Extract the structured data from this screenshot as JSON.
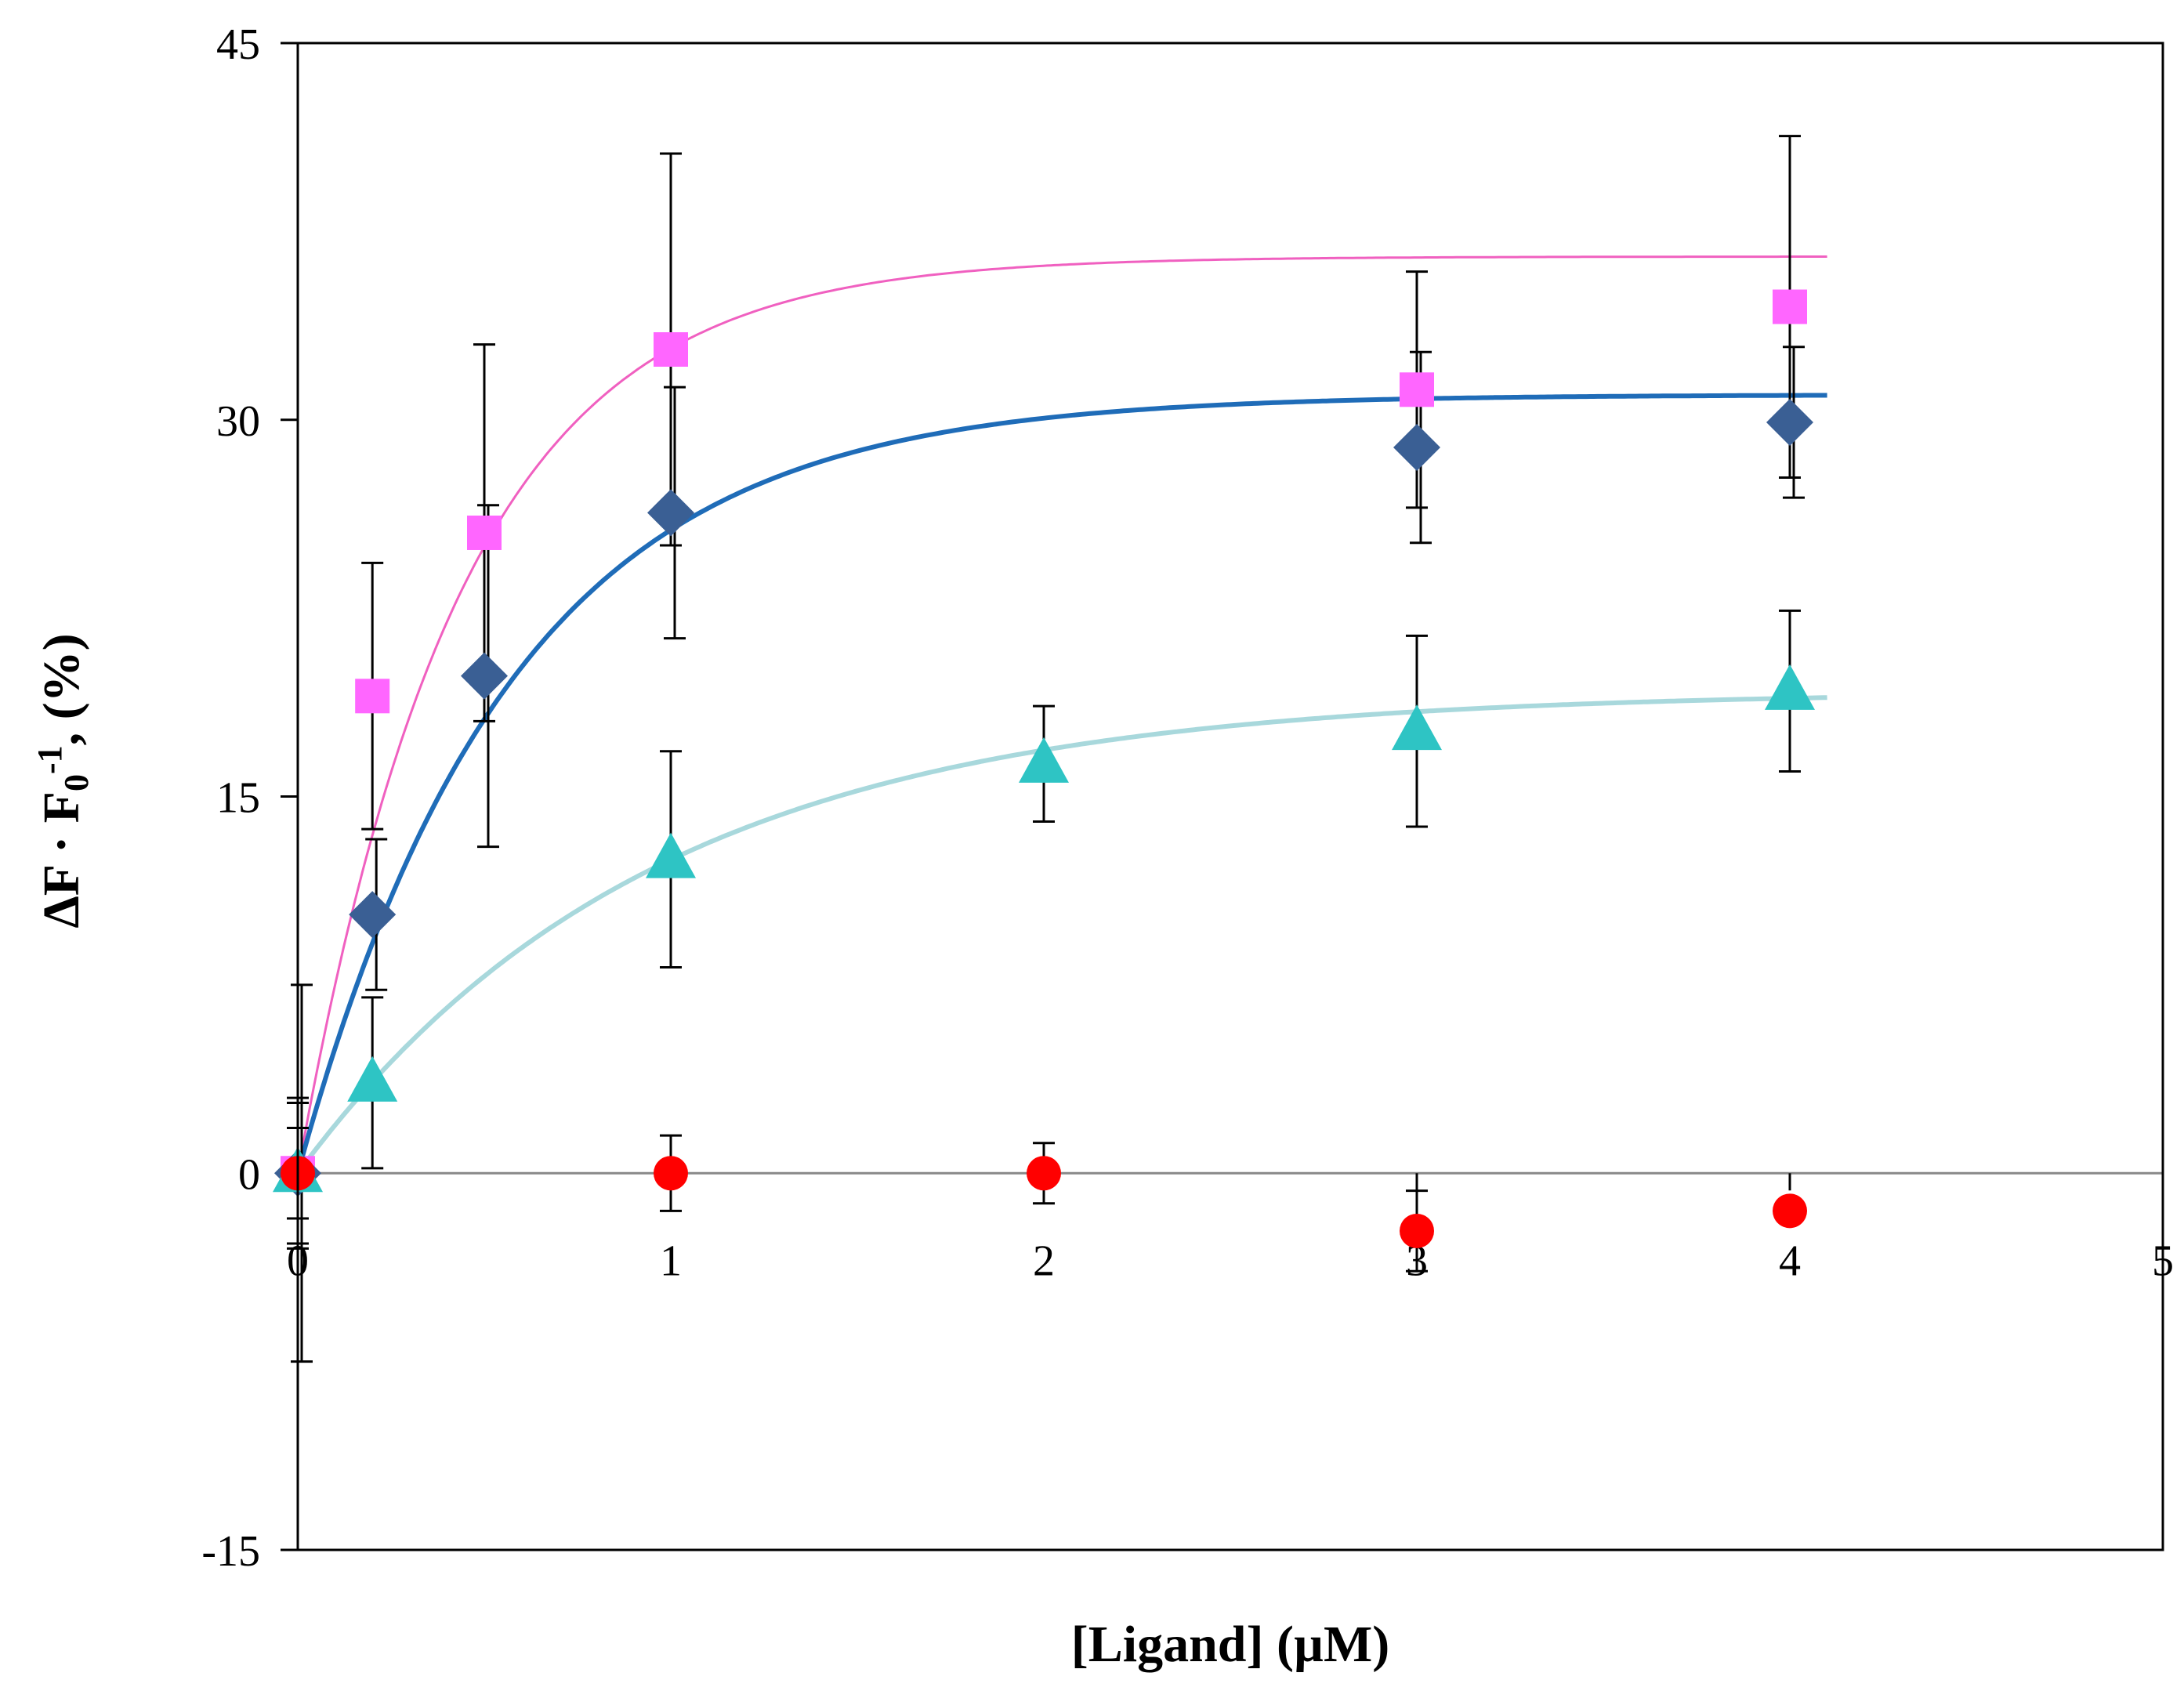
{
  "chart_data": {
    "type": "scatter",
    "title": "",
    "xlabel": "[Ligand] (µM)",
    "ylabel_main": "ΔF · F",
    "ylabel_sub": "0",
    "ylabel_sup": "-1",
    "ylabel_tail": ", (%)",
    "xlim": [
      0,
      5
    ],
    "ylim": [
      -15,
      45
    ],
    "xticks": [
      0,
      1,
      2,
      3,
      4,
      5
    ],
    "yticks": [
      -15,
      0,
      15,
      30,
      45
    ],
    "xtick_labels": [
      "0",
      "1",
      "2",
      "3",
      "4",
      "5"
    ],
    "ytick_labels": [
      "-15",
      "0",
      "15",
      "30",
      "45"
    ],
    "grid": false,
    "legend": "none",
    "series": [
      {
        "name": "magenta squares",
        "marker": "square",
        "color": "#ff66ff",
        "fit_color": "#f060c0",
        "fit": {
          "ymax": 36.5,
          "k": 2.3
        },
        "x": [
          0,
          0.2,
          0.5,
          1,
          3,
          4
        ],
        "y": [
          0,
          19,
          25.5,
          32.8,
          31.2,
          34.5
        ],
        "err": [
          3,
          5.3,
          7.5,
          7.8,
          4.7,
          6.8
        ]
      },
      {
        "name": "blue diamonds",
        "marker": "diamond",
        "color": "#3a5f94",
        "fit_color": "#1f6cb8",
        "fit": {
          "ymax": 31,
          "k": 1.75
        },
        "x": [
          0,
          0.2,
          0.5,
          1,
          3,
          4
        ],
        "y": [
          0,
          10.3,
          19.8,
          26.3,
          28.9,
          29.9
        ],
        "err": [
          7.5,
          3,
          6.8,
          5,
          3.8,
          3
        ]
      },
      {
        "name": "teal triangles",
        "marker": "triangle",
        "color": "#2ec4c4",
        "fit_color": "#a8d8dc",
        "fit": {
          "ymax": 19.2,
          "k": 1.05
        },
        "x": [
          0,
          0.2,
          1,
          2,
          3,
          4
        ],
        "y": [
          0,
          3.6,
          12.5,
          16.3,
          17.6,
          19.2
        ],
        "err": [
          2.8,
          3.4,
          4.3,
          2.3,
          3.8,
          3.2
        ]
      },
      {
        "name": "red circles",
        "marker": "circle",
        "color": "#ff0000",
        "fit_color": null,
        "fit": null,
        "x": [
          0,
          1,
          2,
          3,
          4
        ],
        "y": [
          0,
          0,
          0,
          -2.3,
          -1.5
        ],
        "err": [
          1.8,
          1.5,
          1.2,
          1.6,
          0
        ]
      }
    ]
  }
}
